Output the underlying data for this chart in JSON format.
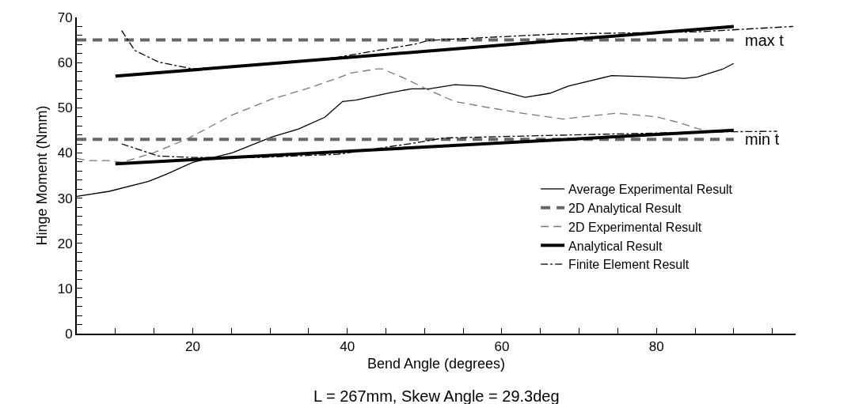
{
  "chart_data": {
    "type": "line",
    "title": "L = 267mm, Skew Angle = 29.3deg",
    "xlabel": "Bend Angle (degrees)",
    "ylabel": "Hinge Moment (Nmm)",
    "xlim": [
      5,
      98
    ],
    "ylim": [
      0,
      70
    ],
    "xticks": [
      {
        "value": 10,
        "label": null
      },
      {
        "value": 15,
        "label": null
      },
      20,
      {
        "value": 25,
        "label": null
      },
      {
        "value": 30,
        "label": null
      },
      {
        "value": 35,
        "label": null
      },
      40,
      {
        "value": 45,
        "label": null
      },
      {
        "value": 50,
        "label": null
      },
      {
        "value": 55,
        "label": null
      },
      60,
      {
        "value": 65,
        "label": null
      },
      {
        "value": 70,
        "label": null
      },
      {
        "value": 75,
        "label": null
      },
      80,
      {
        "value": 85,
        "label": null
      },
      {
        "value": 90,
        "label": null
      },
      {
        "value": 95,
        "label": null
      }
    ],
    "yticks": [
      0,
      {
        "value": 2,
        "label": null
      },
      {
        "value": 4,
        "label": null
      },
      {
        "value": 6,
        "label": null
      },
      {
        "value": 8,
        "label": null
      },
      10,
      {
        "value": 12,
        "label": null
      },
      {
        "value": 14,
        "label": null
      },
      {
        "value": 16,
        "label": null
      },
      {
        "value": 18,
        "label": null
      },
      20,
      {
        "value": 22,
        "label": null
      },
      {
        "value": 24,
        "label": null
      },
      {
        "value": 26,
        "label": null
      },
      {
        "value": 28,
        "label": null
      },
      30,
      {
        "value": 32,
        "label": null
      },
      {
        "value": 34,
        "label": null
      },
      {
        "value": 36,
        "label": null
      },
      {
        "value": 38,
        "label": null
      },
      40,
      {
        "value": 42,
        "label": null
      },
      {
        "value": 44,
        "label": null
      },
      {
        "value": 46,
        "label": null
      },
      {
        "value": 48,
        "label": null
      },
      50,
      {
        "value": 52,
        "label": null
      },
      {
        "value": 54,
        "label": null
      },
      {
        "value": 56,
        "label": null
      },
      {
        "value": 58,
        "label": null
      },
      60,
      {
        "value": 62,
        "label": null
      },
      {
        "value": 64,
        "label": null
      },
      {
        "value": 66,
        "label": null
      },
      {
        "value": 68,
        "label": null
      },
      70
    ],
    "grid": false,
    "legend": "right",
    "marker": "none",
    "annotations": [
      {
        "text": "max t",
        "x": 90,
        "y": 65
      },
      {
        "text": "min t",
        "x": 90,
        "y": 43
      }
    ],
    "series": [
      {
        "name": "Average Experimental Result",
        "color": "#000000",
        "line_style": "solid",
        "x": [
          5,
          9.2,
          14.3,
          16.6,
          20,
          25.1,
          30.2,
          33.7,
          37.1,
          38.8,
          39.4,
          41.1,
          45.5,
          48.3,
          50.6,
          53.9,
          57.4,
          63,
          66.2,
          68.6,
          74.2,
          78.3,
          83.6,
          85.3,
          88.5,
          90
        ],
        "values": [
          30.4,
          31.5,
          33.7,
          35.3,
          37.9,
          40,
          43.5,
          45.3,
          47.9,
          50.5,
          51.4,
          51.7,
          53.3,
          54.2,
          54.2,
          55.1,
          54.8,
          52.3,
          53.2,
          54.8,
          57.1,
          56.9,
          56.5,
          56.8,
          58.5,
          59.8
        ]
      },
      {
        "name": "2D Analytical Result",
        "color": "#666666",
        "line_style": "dashed",
        "x": [
          5,
          90
        ],
        "values": [
          65,
          65
        ]
      },
      {
        "color": "#666666",
        "line_style": "dashed",
        "x": [
          5,
          90
        ],
        "values": [
          43,
          43
        ]
      },
      {
        "name": "2D Experimental Result",
        "color": "#777777",
        "line_style": "dashed",
        "x": [
          5,
          6.3,
          9.2,
          10.8,
          14.9,
          19.4,
          25.1,
          30.2,
          35.3,
          38.8,
          40.5,
          43.9,
          44.5,
          47.3,
          50.4,
          53.9,
          57.4,
          62.6,
          67.9,
          74.8,
          80,
          82.5,
          85.3,
          86.4
        ],
        "values": [
          38.8,
          38.3,
          38.3,
          37.9,
          40,
          43.2,
          48.4,
          51.9,
          54.5,
          56.6,
          57.7,
          58.6,
          58.6,
          56.6,
          54,
          51.4,
          50.3,
          48.8,
          47.5,
          48.8,
          48,
          46.9,
          45.4,
          45
        ]
      },
      {
        "name": "Analytical Result",
        "color": "#000000",
        "line_style": "solid",
        "x": [
          10,
          90
        ],
        "values": [
          57,
          68
        ]
      },
      {
        "color": "#000000",
        "line_style": "solid",
        "x": [
          10,
          90
        ],
        "values": [
          37.6,
          45
        ]
      },
      {
        "name": "Finite Element Result",
        "color": "#000000",
        "line_style": "dashdot",
        "x": [
          10.8,
          12.5,
          15.6,
          20,
          28.6,
          38.8,
          49.1,
          50.4,
          66.8,
          85.2,
          97.7
        ],
        "values": [
          67.1,
          62.7,
          60.1,
          58.6,
          59.4,
          61.2,
          64.2,
          64.9,
          66.3,
          66.8,
          68
        ]
      },
      {
        "color": "#000000",
        "line_style": "dashdot",
        "x": [
          10.8,
          15.6,
          20,
          28.6,
          38.8,
          49.1,
          52.4,
          66.8,
          85.2,
          95.6
        ],
        "values": [
          42,
          39.3,
          39,
          39,
          39.7,
          42.3,
          43.3,
          43.9,
          44.6,
          44.8
        ]
      }
    ]
  }
}
